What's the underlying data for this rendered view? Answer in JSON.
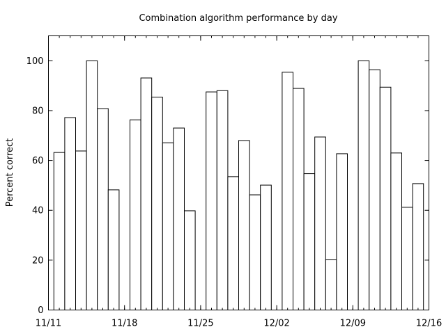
{
  "chart_data": {
    "type": "bar",
    "title": "Combination algorithm performance by day",
    "xlabel": "",
    "ylabel": "Percent correct",
    "x_axis": "date",
    "xlim": [
      "11/11",
      "12/16"
    ],
    "ylim": [
      0,
      110
    ],
    "yticks": [
      0,
      20,
      40,
      60,
      80,
      100
    ],
    "xticks": [
      "11/11",
      "11/18",
      "11/25",
      "12/02",
      "12/09",
      "12/16"
    ],
    "grid": false,
    "legend": "none",
    "bar_style": "white fill, black outline",
    "bars": [
      {
        "date": "11/12",
        "value": 63.2
      },
      {
        "date": "11/13",
        "value": 77.2
      },
      {
        "date": "11/14",
        "value": 63.8
      },
      {
        "date": "11/15",
        "value": 100
      },
      {
        "date": "11/16",
        "value": 80.8
      },
      {
        "date": "11/17",
        "value": 48.2
      },
      {
        "date": "11/19",
        "value": 76.3
      },
      {
        "date": "11/20",
        "value": 93.1
      },
      {
        "date": "11/21",
        "value": 85.4
      },
      {
        "date": "11/22",
        "value": 67.1
      },
      {
        "date": "11/23",
        "value": 73.0
      },
      {
        "date": "11/24",
        "value": 39.8
      },
      {
        "date": "11/26",
        "value": 87.5
      },
      {
        "date": "11/27",
        "value": 88.0
      },
      {
        "date": "11/28",
        "value": 53.5
      },
      {
        "date": "11/29",
        "value": 68.0
      },
      {
        "date": "11/30",
        "value": 46.2
      },
      {
        "date": "12/01",
        "value": 50.1
      },
      {
        "date": "12/03",
        "value": 95.4
      },
      {
        "date": "12/04",
        "value": 88.9
      },
      {
        "date": "12/05",
        "value": 54.7
      },
      {
        "date": "12/06",
        "value": 69.4
      },
      {
        "date": "12/07",
        "value": 20.3
      },
      {
        "date": "12/08",
        "value": 62.7
      },
      {
        "date": "12/10",
        "value": 100
      },
      {
        "date": "12/11",
        "value": 96.4
      },
      {
        "date": "12/12",
        "value": 89.4
      },
      {
        "date": "12/13",
        "value": 63.0
      },
      {
        "date": "12/14",
        "value": 41.2
      },
      {
        "date": "12/15",
        "value": 50.7
      }
    ]
  }
}
